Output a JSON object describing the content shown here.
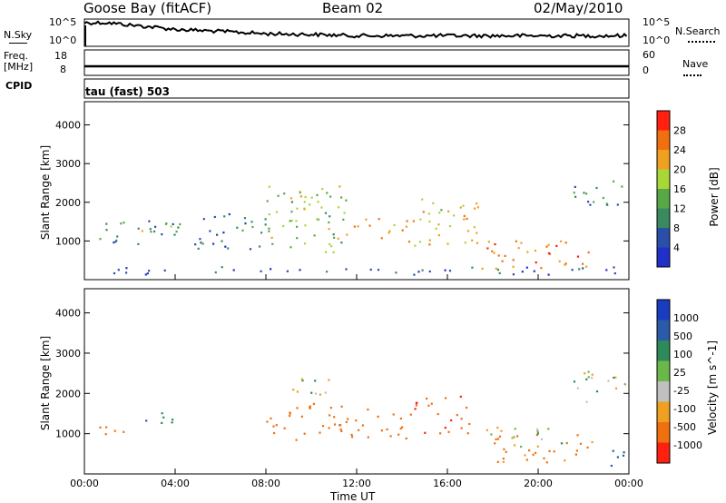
{
  "header": {
    "station": "Goose Bay (fitACF)",
    "beam": "Beam 02",
    "date": "02/May/2010"
  },
  "noise_panel": {
    "left_label": "N.Sky",
    "left_ticks": [
      "10^5",
      "10^0"
    ],
    "right_ticks": [
      "10^5",
      "10^0"
    ],
    "right_label": "N.Search"
  },
  "freq_panel": {
    "left_label_1": "Freq.",
    "left_label_2": "[MHz]",
    "left_ticks": [
      "18",
      "8"
    ],
    "right_ticks": [
      "60",
      "0"
    ],
    "right_label": "Nave"
  },
  "cpid": {
    "label": "CPID",
    "value": "tau (fast) 503"
  },
  "power_panel": {
    "ylabel": "Slant Range [km]",
    "colorbar_label": "Power [dB]",
    "colorbar_ticks": [
      "28",
      "24",
      "20",
      "16",
      "12",
      "8",
      "4"
    ],
    "colors": [
      "#2030c8",
      "#2a4fa8",
      "#3a8a60",
      "#58a848",
      "#a8d838",
      "#f0a020",
      "#f07010",
      "#ff2010"
    ]
  },
  "velocity_panel": {
    "ylabel": "Slant Range [km]",
    "colorbar_label": "Velocity [m s^-1]",
    "colorbar_ticks": [
      "1000",
      "500",
      "100",
      "25",
      "-25",
      "-100",
      "-500",
      "-1000"
    ],
    "colors": [
      "#1a3cc0",
      "#2a5aa8",
      "#2e8a5a",
      "#6ab84a",
      "#c0c0c0",
      "#f0a020",
      "#f07010",
      "#ff2010"
    ]
  },
  "time_axis": {
    "label": "Time UT",
    "ticks": [
      "00:00",
      "04:00",
      "08:00",
      "12:00",
      "16:00",
      "20:00",
      "00:00"
    ]
  },
  "chart_data": [
    {
      "type": "line",
      "title": "",
      "xlabel": "Time UT",
      "ylabel": "N.Sky",
      "x_range_hours": [
        0,
        24
      ],
      "yscale": "log",
      "series": [
        {
          "x": [
            0,
            1,
            2,
            3,
            4,
            6,
            8,
            10,
            12,
            14,
            16,
            18,
            20,
            22,
            24
          ],
          "y": [
            100000,
            100000,
            30000,
            10000,
            3000,
            1000,
            300,
            200,
            100,
            100,
            100,
            100,
            100,
            100,
            100
          ]
        }
      ]
    },
    {
      "type": "line",
      "title": "",
      "xlabel": "Time UT",
      "ylabel": "Freq. [MHz]",
      "x_range_hours": [
        0,
        24
      ],
      "ylim": [
        8,
        18
      ],
      "series": [
        {
          "x": [
            0,
            24
          ],
          "y": [
            10,
            10
          ]
        }
      ]
    },
    {
      "type": "heatmap",
      "title": "",
      "xlabel": "Time UT",
      "ylabel": "Slant Range [km]",
      "colorbar": "Power [dB]",
      "x_range_hours": [
        0,
        24
      ],
      "ylim": [
        0,
        4600
      ],
      "blobs": [
        {
          "t0": 0.5,
          "t1": 4.2,
          "r0": 900,
          "r1": 1600,
          "dB": 10
        },
        {
          "t0": 2.5,
          "t1": 4.0,
          "r0": 1250,
          "r1": 1550,
          "dB": 18
        },
        {
          "t0": 4.8,
          "t1": 8.0,
          "r0": 800,
          "r1": 1800,
          "dB": 8
        },
        {
          "t0": 8.0,
          "t1": 11.5,
          "r0": 700,
          "r1": 2500,
          "dB": 16
        },
        {
          "t0": 9.0,
          "t1": 11.0,
          "r0": 1800,
          "r1": 2200,
          "dB": 20
        },
        {
          "t0": 11.5,
          "t1": 14.5,
          "r0": 1000,
          "r1": 1600,
          "dB": 22
        },
        {
          "t0": 14.5,
          "t1": 17.5,
          "r0": 900,
          "r1": 2200,
          "dB": 20
        },
        {
          "t0": 17.5,
          "t1": 22.5,
          "r0": 300,
          "r1": 1100,
          "dB": 26
        },
        {
          "t0": 21.5,
          "t1": 23.8,
          "r0": 1800,
          "r1": 2600,
          "dB": 10
        },
        {
          "t0": 0.0,
          "t1": 24.0,
          "r0": 150,
          "r1": 350,
          "dB": 6
        }
      ]
    },
    {
      "type": "heatmap",
      "title": "",
      "xlabel": "Time UT",
      "ylabel": "Slant Range [km]",
      "colorbar": "Velocity [m s^-1]",
      "x_range_hours": [
        0,
        24
      ],
      "ylim": [
        0,
        4600
      ],
      "blobs": [
        {
          "t0": 0.5,
          "t1": 2.5,
          "r0": 900,
          "r1": 1200,
          "v": -200
        },
        {
          "t0": 2.5,
          "t1": 4.2,
          "r0": 1200,
          "r1": 1600,
          "v": 80
        },
        {
          "t0": 8.0,
          "t1": 11.5,
          "r0": 800,
          "r1": 1800,
          "v": -300
        },
        {
          "t0": 9.0,
          "t1": 11.0,
          "r0": 1800,
          "r1": 2400,
          "v": 0
        },
        {
          "t0": 11.5,
          "t1": 14.5,
          "r0": 900,
          "r1": 1700,
          "v": -300
        },
        {
          "t0": 14.5,
          "t1": 17.0,
          "r0": 1000,
          "r1": 2000,
          "v": -400
        },
        {
          "t0": 17.5,
          "t1": 22.5,
          "r0": 300,
          "r1": 1000,
          "v": -150
        },
        {
          "t0": 17.5,
          "t1": 21.0,
          "r0": 700,
          "r1": 1200,
          "v": 0
        },
        {
          "t0": 21.5,
          "t1": 23.8,
          "r0": 1800,
          "r1": 2600,
          "v": 0
        },
        {
          "t0": 22.5,
          "t1": 24.0,
          "r0": 200,
          "r1": 600,
          "v": 150
        }
      ]
    }
  ]
}
